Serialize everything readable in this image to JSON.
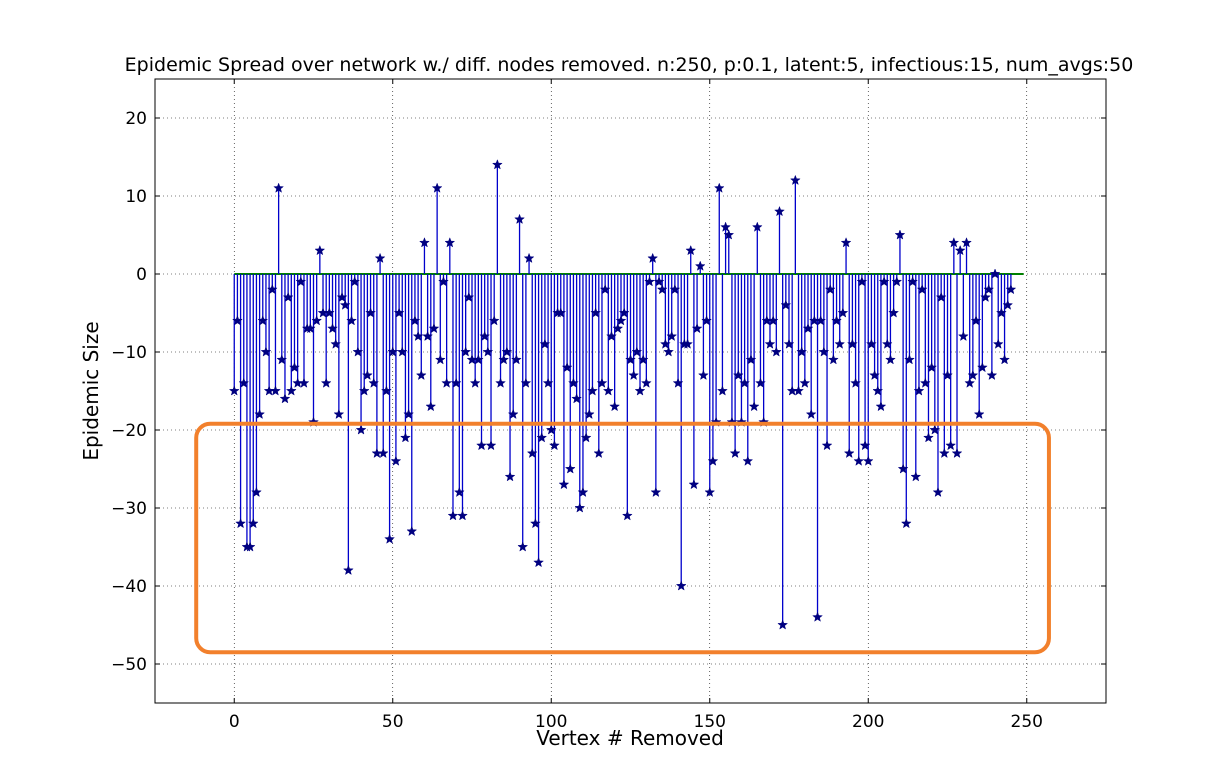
{
  "chart_data": {
    "type": "stem",
    "title": "Epidemic Spread over network w./ diff. nodes removed. n:250, p:0.1, latent:5, infectious:15, num_avgs:50",
    "xlabel": "Vertex # Removed",
    "ylabel": "Epidemic Size",
    "xlim": [
      -25,
      275
    ],
    "ylim": [
      -55,
      25
    ],
    "xticks": [
      0,
      50,
      100,
      150,
      200,
      250
    ],
    "xtick_labels": [
      "0",
      "50",
      "100",
      "150",
      "200",
      "250"
    ],
    "yticks": [
      -50,
      -40,
      -30,
      -20,
      -10,
      0,
      10,
      20
    ],
    "ytick_labels": [
      "−50",
      "−40",
      "−30",
      "−20",
      "−10",
      "0",
      "10",
      "20"
    ],
    "grid": true,
    "baseline": {
      "y": 0,
      "x_range": [
        0,
        249
      ],
      "color": "#008000"
    },
    "stem_color": "#0000cc",
    "marker": "star",
    "marker_color": "#000080",
    "highlight": {
      "x_range": [
        -12,
        257
      ],
      "y_range": [
        -48.5,
        -19.2
      ],
      "color": "#f2802c"
    },
    "series": [
      {
        "x_start": 0,
        "values": [
          -15,
          -6,
          -32,
          -14,
          -35,
          -35,
          -32,
          -28,
          -18,
          -6,
          -10,
          -15,
          -2,
          -15,
          11,
          -11,
          -16,
          -3,
          -15,
          -12,
          -14,
          -1,
          -14,
          -7,
          -7,
          -19,
          -6,
          3,
          -5,
          -14,
          -5,
          -7,
          -9,
          -18,
          -3,
          -4,
          -38,
          -6,
          -1,
          -10,
          -20,
          -15,
          -13,
          -5,
          -14,
          -23,
          2,
          -23,
          -15,
          -34,
          -10,
          -24,
          -5,
          -10,
          -21,
          -18,
          -33,
          -6,
          -8,
          -13,
          4,
          -8,
          -17,
          -7,
          11,
          -11,
          -1,
          -14,
          4,
          -31,
          -14,
          -28,
          -31,
          -10,
          -3,
          -11,
          -14,
          -11,
          -22,
          -8,
          -10,
          -22,
          -6,
          14,
          -14,
          -11,
          -10,
          -26,
          -18,
          -11,
          7,
          -35,
          -14,
          2,
          -23,
          -32,
          -37,
          -21,
          -9,
          -14,
          -20,
          -22,
          -5,
          -5,
          -27,
          -12,
          -25,
          -14,
          -16,
          -30,
          -28,
          -21,
          -18,
          -15,
          -5,
          -23,
          -14,
          -2,
          -15,
          -8,
          -17,
          -7,
          -6,
          -5,
          -31,
          -11,
          -13,
          -10,
          -15,
          -11,
          -14,
          -1,
          2,
          -28,
          -1,
          -2,
          -9,
          -10,
          -8,
          -2,
          -14,
          -40,
          -9,
          -9,
          3,
          -27,
          -7,
          1,
          -13,
          -6,
          -28,
          -24,
          -19,
          11,
          -15,
          6,
          5,
          -19,
          -23,
          -13,
          -19,
          -14,
          -24,
          -11,
          -17,
          6,
          -14,
          -19,
          -6,
          -9,
          -6,
          -10,
          8,
          -45,
          -4,
          -9,
          -15,
          12,
          -15,
          -10,
          -14,
          -7,
          -18,
          -6,
          -44,
          -6,
          -10,
          -22,
          -2,
          -11,
          -6,
          -9,
          -5,
          4,
          -23,
          -9,
          -14,
          -24,
          -1,
          -22,
          -24,
          -9,
          -13,
          -15,
          -17,
          -1,
          -9,
          -11,
          -5,
          -1,
          5,
          -25,
          -32,
          -11,
          -1,
          -26,
          -15,
          -2,
          -14,
          -21,
          -12,
          -20,
          -28,
          -3,
          -23,
          -13,
          -22,
          4,
          -23,
          3,
          -8,
          4,
          -14,
          -13,
          -6,
          -18,
          -12,
          -3,
          -2,
          -13,
          0,
          -9,
          -5,
          -11,
          -4,
          -2
        ]
      }
    ]
  }
}
